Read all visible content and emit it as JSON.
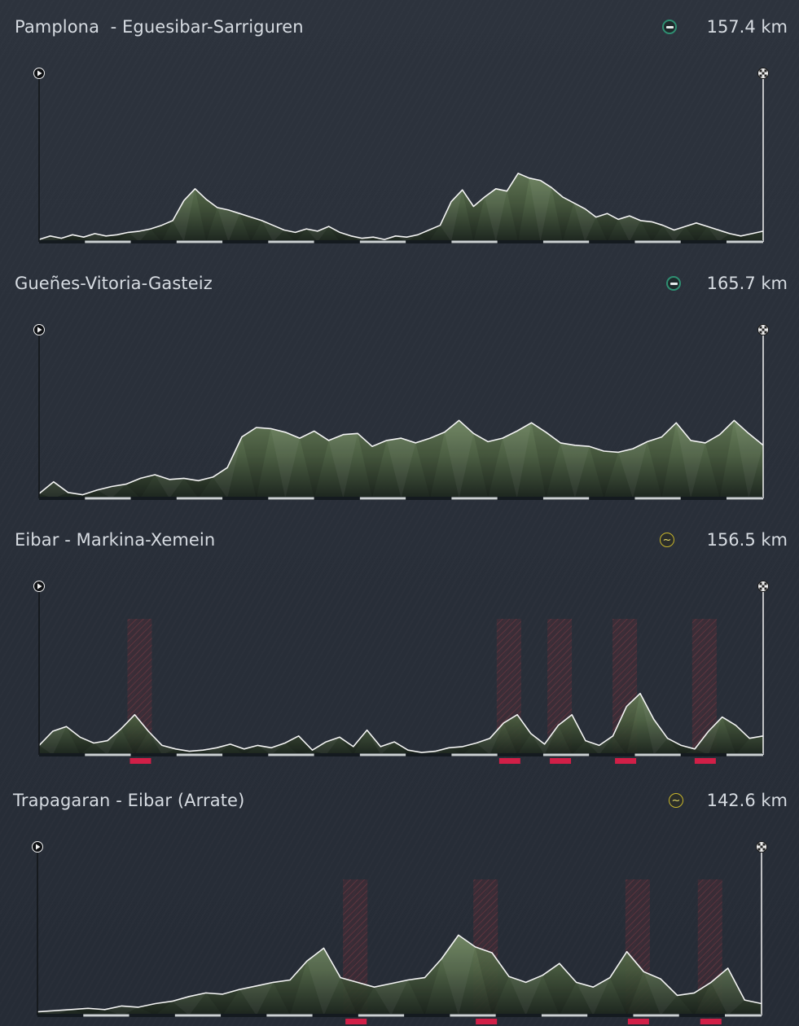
{
  "stages": [
    {
      "title": "Pamplona  - Eguesibar-Sarriguren",
      "profile_icon": "flat-stage-icon",
      "icon_color": "#2f8f72",
      "distance": "157.4 km",
      "profile_heights": [
        0.02,
        0.05,
        0.03,
        0.06,
        0.04,
        0.07,
        0.05,
        0.06,
        0.08,
        0.09,
        0.11,
        0.14,
        0.18,
        0.35,
        0.45,
        0.36,
        0.29,
        0.27,
        0.24,
        0.21,
        0.18,
        0.14,
        0.1,
        0.08,
        0.11,
        0.09,
        0.13,
        0.08,
        0.05,
        0.03,
        0.04,
        0.02,
        0.05,
        0.04,
        0.06,
        0.1,
        0.14,
        0.34,
        0.44,
        0.3,
        0.38,
        0.45,
        0.43,
        0.58,
        0.54,
        0.52,
        0.46,
        0.38,
        0.33,
        0.28,
        0.21,
        0.24,
        0.19,
        0.22,
        0.18,
        0.17,
        0.14,
        0.1,
        0.13,
        0.16,
        0.13,
        0.1,
        0.07,
        0.05,
        0.07,
        0.09
      ],
      "climbs": [],
      "climb_colors": []
    },
    {
      "title": "Gueñes-Vitoria-Gasteiz",
      "profile_icon": "flat-stage-icon",
      "icon_color": "#2f8f72",
      "distance": "165.7 km",
      "profile_heights": [
        0.04,
        0.14,
        0.05,
        0.03,
        0.07,
        0.1,
        0.12,
        0.17,
        0.2,
        0.16,
        0.17,
        0.15,
        0.18,
        0.26,
        0.52,
        0.6,
        0.59,
        0.56,
        0.51,
        0.57,
        0.49,
        0.54,
        0.55,
        0.44,
        0.49,
        0.51,
        0.47,
        0.51,
        0.56,
        0.66,
        0.55,
        0.48,
        0.51,
        0.57,
        0.64,
        0.56,
        0.47,
        0.45,
        0.44,
        0.4,
        0.39,
        0.42,
        0.48,
        0.52,
        0.64,
        0.49,
        0.47,
        0.54,
        0.66,
        0.55,
        0.45
      ],
      "climbs": [],
      "climb_colors": []
    },
    {
      "title": "Eibar - Markina-Xemein",
      "profile_icon": "hilly-stage-icon",
      "icon_color": "#c7b52c",
      "distance": "156.5 km",
      "profile_heights": [
        0.08,
        0.2,
        0.24,
        0.15,
        0.1,
        0.12,
        0.22,
        0.34,
        0.2,
        0.08,
        0.05,
        0.03,
        0.04,
        0.06,
        0.09,
        0.05,
        0.08,
        0.06,
        0.1,
        0.16,
        0.04,
        0.11,
        0.15,
        0.07,
        0.21,
        0.07,
        0.11,
        0.04,
        0.02,
        0.03,
        0.06,
        0.07,
        0.1,
        0.14,
        0.27,
        0.34,
        0.18,
        0.09,
        0.25,
        0.34,
        0.12,
        0.08,
        0.16,
        0.41,
        0.52,
        0.3,
        0.14,
        0.08,
        0.05,
        0.2,
        0.32,
        0.25,
        0.14,
        0.16
      ],
      "climbs": [
        0.14,
        0.65,
        0.72,
        0.81,
        0.92
      ],
      "climb_colors": [
        "#d11f47",
        "#d11f47",
        "#d11f47",
        "#d11f47",
        "#d11f47"
      ]
    },
    {
      "title": "Trapagaran - Eibar (Arrate)",
      "profile_icon": "hilly-stage-icon",
      "icon_color": "#c7b52c",
      "distance": "142.6 km",
      "profile_heights": [
        0.03,
        0.04,
        0.05,
        0.06,
        0.05,
        0.08,
        0.07,
        0.1,
        0.12,
        0.16,
        0.19,
        0.18,
        0.22,
        0.25,
        0.28,
        0.3,
        0.46,
        0.57,
        0.32,
        0.28,
        0.24,
        0.27,
        0.3,
        0.32,
        0.48,
        0.68,
        0.58,
        0.53,
        0.33,
        0.28,
        0.34,
        0.44,
        0.28,
        0.24,
        0.32,
        0.54,
        0.37,
        0.31,
        0.17,
        0.19,
        0.28,
        0.4,
        0.13,
        0.1
      ],
      "climbs": [
        0.44,
        0.62,
        0.83,
        0.93
      ],
      "climb_colors": [
        "#d11f47",
        "#d11f47",
        "#d11f47",
        "#d11f47"
      ]
    }
  ],
  "colors": {
    "terrain_light": "#6f875f",
    "terrain_mid": "#4f6344",
    "terrain_dark": "#1b241c",
    "outline": "#f4f4f4",
    "km_bar": "#141a1f",
    "km_segment": "#cdd1d3"
  }
}
